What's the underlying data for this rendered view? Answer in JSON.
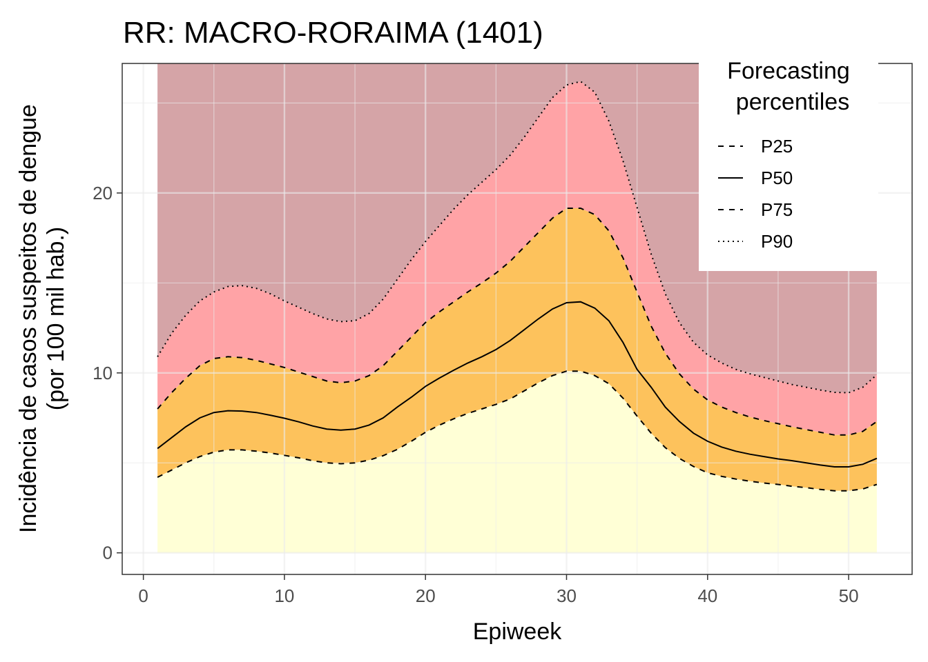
{
  "chart_data": {
    "type": "area",
    "title": "RR: MACRO-RORAIMA (1401)",
    "xlabel": "Epiweek",
    "ylabel": [
      "Incidência de casos suspeitos de dengue",
      "(por 100 mil hab.)"
    ],
    "xlim": [
      -1.5,
      54.5
    ],
    "ylim": [
      -1.2,
      27.2
    ],
    "x_ticks": [
      0,
      10,
      20,
      30,
      40,
      50
    ],
    "y_ticks": [
      0,
      10,
      20
    ],
    "grid": true,
    "legend": {
      "title": [
        "Forecasting",
        "percentiles"
      ],
      "position": "top-right",
      "entries": [
        {
          "label": "P25",
          "dash": "dashed"
        },
        {
          "label": "P50",
          "dash": "solid"
        },
        {
          "label": "P75",
          "dash": "dashed"
        },
        {
          "label": "P90",
          "dash": "dotted"
        }
      ]
    },
    "band_colors": {
      "below_p25": "#ffffd6",
      "p25_to_p75": "#fdc25c",
      "p75_to_p90": "#ffa3a6",
      "above_p90": "#d5a4a7"
    },
    "x": [
      1,
      2,
      3,
      4,
      5,
      6,
      7,
      8,
      9,
      10,
      11,
      12,
      13,
      14,
      15,
      16,
      17,
      18,
      19,
      20,
      21,
      22,
      23,
      24,
      25,
      26,
      27,
      28,
      29,
      30,
      31,
      32,
      33,
      34,
      35,
      36,
      37,
      38,
      39,
      40,
      41,
      42,
      43,
      44,
      45,
      46,
      47,
      48,
      49,
      50,
      51,
      52
    ],
    "series": [
      {
        "name": "P25",
        "values": [
          4.2,
          4.6,
          5.0,
          5.35,
          5.6,
          5.72,
          5.72,
          5.65,
          5.55,
          5.42,
          5.28,
          5.12,
          5.0,
          4.95,
          5.0,
          5.15,
          5.4,
          5.75,
          6.2,
          6.7,
          7.1,
          7.45,
          7.75,
          8.0,
          8.25,
          8.55,
          9.0,
          9.45,
          9.85,
          10.1,
          10.1,
          9.85,
          9.4,
          8.6,
          7.6,
          6.65,
          5.85,
          5.25,
          4.8,
          4.45,
          4.25,
          4.1,
          3.98,
          3.88,
          3.8,
          3.7,
          3.62,
          3.52,
          3.45,
          3.45,
          3.55,
          3.8
        ]
      },
      {
        "name": "P50",
        "values": [
          5.8,
          6.4,
          7.0,
          7.5,
          7.8,
          7.9,
          7.88,
          7.8,
          7.65,
          7.48,
          7.28,
          7.05,
          6.88,
          6.82,
          6.88,
          7.1,
          7.5,
          8.1,
          8.65,
          9.25,
          9.72,
          10.15,
          10.55,
          10.9,
          11.3,
          11.8,
          12.4,
          13.0,
          13.55,
          13.9,
          13.95,
          13.6,
          12.9,
          11.7,
          10.2,
          9.2,
          8.1,
          7.3,
          6.65,
          6.2,
          5.88,
          5.65,
          5.48,
          5.35,
          5.22,
          5.12,
          5.0,
          4.88,
          4.78,
          4.78,
          4.92,
          5.25
        ]
      },
      {
        "name": "P75",
        "values": [
          8.0,
          8.9,
          9.7,
          10.4,
          10.8,
          10.9,
          10.85,
          10.7,
          10.5,
          10.3,
          10.05,
          9.8,
          9.55,
          9.45,
          9.55,
          9.85,
          10.4,
          11.2,
          12.0,
          12.8,
          13.4,
          13.95,
          14.5,
          15.0,
          15.55,
          16.2,
          17.0,
          17.8,
          18.6,
          19.15,
          19.15,
          18.8,
          17.9,
          16.4,
          14.5,
          12.6,
          11.1,
          9.95,
          9.1,
          8.5,
          8.1,
          7.8,
          7.55,
          7.35,
          7.18,
          7.0,
          6.85,
          6.7,
          6.55,
          6.55,
          6.75,
          7.3
        ]
      },
      {
        "name": "P90",
        "values": [
          10.9,
          12.2,
          13.2,
          14.0,
          14.5,
          14.8,
          14.85,
          14.7,
          14.4,
          14.0,
          13.65,
          13.3,
          13.0,
          12.85,
          12.9,
          13.3,
          14.1,
          15.2,
          16.3,
          17.3,
          18.2,
          19.1,
          19.9,
          20.6,
          21.3,
          22.1,
          23.1,
          24.2,
          25.3,
          26.0,
          26.2,
          25.6,
          24.0,
          21.8,
          19.2,
          16.6,
          14.4,
          12.8,
          11.7,
          11.0,
          10.55,
          10.2,
          9.95,
          9.75,
          9.55,
          9.35,
          9.2,
          9.05,
          8.92,
          8.9,
          9.2,
          9.9
        ]
      }
    ]
  }
}
